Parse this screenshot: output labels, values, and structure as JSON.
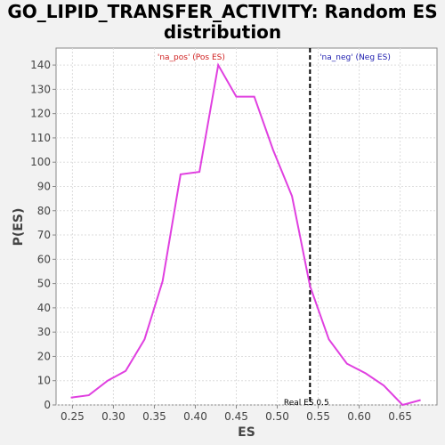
{
  "chart_data": {
    "type": "line",
    "title_line1": "GO_LIPID_TRANSFER_ACTIVITY: Random ES",
    "title_line2": "distribution",
    "xlabel": "ES",
    "ylabel": "P(ES)",
    "xlim": [
      0.23,
      0.695
    ],
    "ylim": [
      0,
      147
    ],
    "xticks": [
      "0.25",
      "0.30",
      "0.35",
      "0.40",
      "0.45",
      "0.50",
      "0.55",
      "0.60",
      "0.65"
    ],
    "yticks": [
      "0",
      "10",
      "20",
      "30",
      "40",
      "50",
      "60",
      "70",
      "80",
      "90",
      "100",
      "110",
      "120",
      "130",
      "140"
    ],
    "grid": true,
    "line_color": "#e040e0",
    "series": [
      {
        "x": [
          0.248,
          0.27,
          0.293,
          0.315,
          0.338,
          0.36,
          0.382,
          0.405,
          0.428,
          0.45,
          0.472,
          0.495,
          0.518,
          0.54,
          0.563,
          0.585,
          0.608,
          0.63,
          0.653,
          0.675
        ],
        "y": [
          3,
          4,
          10,
          14,
          27,
          51,
          95,
          96,
          140,
          127,
          127,
          105,
          86,
          49,
          27,
          17,
          13,
          8,
          0,
          2
        ]
      }
    ],
    "real_es": {
      "value": 0.5,
      "x": 0.54,
      "label": "Real ES 0.5"
    },
    "annotations": [
      {
        "text": "'na_pos' (Pos ES)",
        "color": "#d02020",
        "x": 0.395
      },
      {
        "text": "'na_neg' (Neg ES)",
        "color": "#2020b0",
        "x": 0.595
      }
    ]
  }
}
